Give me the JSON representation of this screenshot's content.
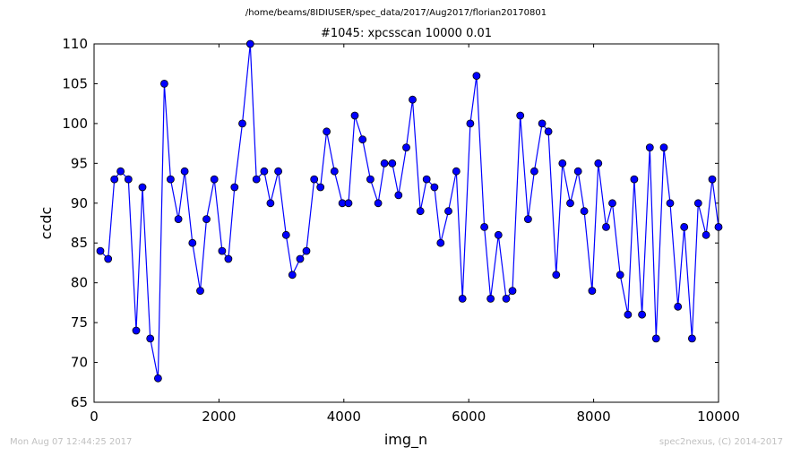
{
  "header": {
    "path": "/home/beams/8IDIUSER/spec_data/2017/Aug2017/florian20170801",
    "scan_title": "#1045: xpcsscan 10000 0.01"
  },
  "footer": {
    "timestamp": "Mon Aug 07 12:44:25 2017",
    "credit": "spec2nexus, (C) 2014-2017"
  },
  "colors": {
    "series": "#0000ff",
    "marker_edge": "#000000",
    "footer_text": "#c0c0c0"
  },
  "chart_data": {
    "type": "line",
    "title": "#1045: xpcsscan 10000 0.01",
    "xlabel": "img_n",
    "ylabel": "ccdc",
    "xlim": [
      0,
      10000
    ],
    "ylim": [
      65,
      110
    ],
    "xticks": [
      0,
      2000,
      4000,
      6000,
      8000,
      10000
    ],
    "yticks": [
      65,
      70,
      75,
      80,
      85,
      90,
      95,
      100,
      105,
      110
    ],
    "grid": false,
    "legend": "none",
    "marker": "circle",
    "series": [
      {
        "x": [
          100,
          225,
          325,
          425,
          550,
          675,
          775,
          900,
          1025,
          1125,
          1225,
          1350,
          1450,
          1575,
          1700,
          1800,
          1925,
          2050,
          2150,
          2250,
          2375,
          2500,
          2600,
          2725,
          2825,
          2950,
          3075,
          3175,
          3300,
          3400,
          3525,
          3625,
          3725,
          3850,
          3975,
          4075,
          4175,
          4300,
          4425,
          4550,
          4650,
          4775,
          4875,
          5000,
          5100,
          5225,
          5325,
          5450,
          5550,
          5675,
          5800,
          5900,
          6025,
          6125,
          6250,
          6350,
          6475,
          6600,
          6700,
          6825,
          6950,
          7050,
          7175,
          7275,
          7400,
          7500,
          7625,
          7750,
          7850,
          7975,
          8075,
          8200,
          8300,
          8425,
          8550,
          8650,
          8775,
          8900,
          9000,
          9125,
          9225,
          9350,
          9450,
          9575,
          9675,
          9800,
          9900,
          10000
        ],
        "values": [
          84,
          83,
          93,
          94,
          93,
          74,
          92,
          73,
          68,
          105,
          93,
          88,
          94,
          85,
          79,
          88,
          93,
          84,
          83,
          92,
          100,
          110,
          93,
          94,
          90,
          94,
          86,
          81,
          83,
          84,
          93,
          92,
          99,
          94,
          90,
          90,
          101,
          98,
          93,
          90,
          95,
          95,
          91,
          97,
          103,
          89,
          93,
          92,
          85,
          89,
          94,
          78,
          100,
          106,
          87,
          78,
          86,
          78,
          79,
          101,
          88,
          94,
          100,
          99,
          81,
          95,
          90,
          94,
          89,
          79,
          95,
          87,
          90,
          81,
          76,
          93,
          76,
          97,
          73,
          97,
          90,
          77,
          87,
          73,
          90,
          86,
          93,
          87
        ]
      }
    ]
  }
}
